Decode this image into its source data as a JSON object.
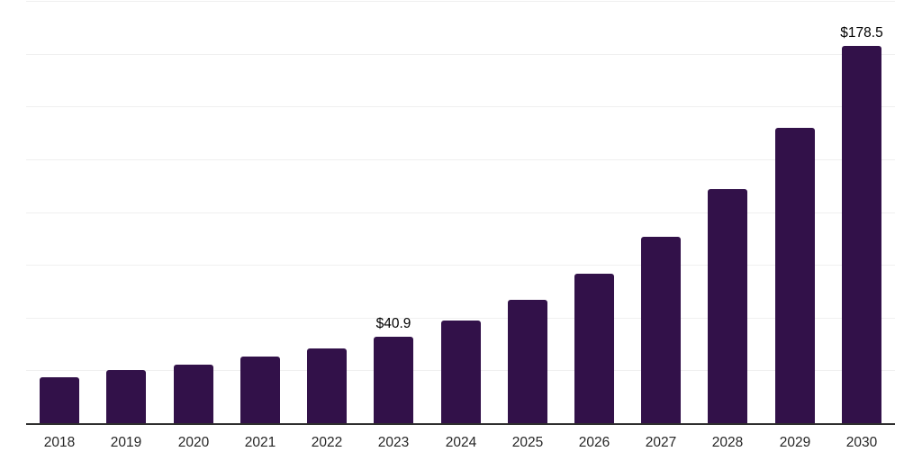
{
  "chart_data": {
    "type": "bar",
    "title": "",
    "xlabel": "",
    "ylabel": "",
    "categories": [
      "2018",
      "2019",
      "2020",
      "2021",
      "2022",
      "2023",
      "2024",
      "2025",
      "2026",
      "2027",
      "2028",
      "2029",
      "2030"
    ],
    "values": [
      21.8,
      25.0,
      27.9,
      31.6,
      35.6,
      40.9,
      48.6,
      58.6,
      70.7,
      88.1,
      110.7,
      140.0,
      178.5
    ],
    "data_labels": {
      "2023": "$40.9",
      "2030": "$178.5"
    },
    "ylim": [
      0,
      200
    ],
    "grid_step": 25,
    "grid": true,
    "legend": false,
    "y_tick_labels_visible": false
  },
  "colors": {
    "bar": "#321149",
    "gridline": "#f0f0f0",
    "axis": "#2e2e2e",
    "tick_text": "#262626",
    "data_label_text": "#000000",
    "background": "#ffffff"
  }
}
